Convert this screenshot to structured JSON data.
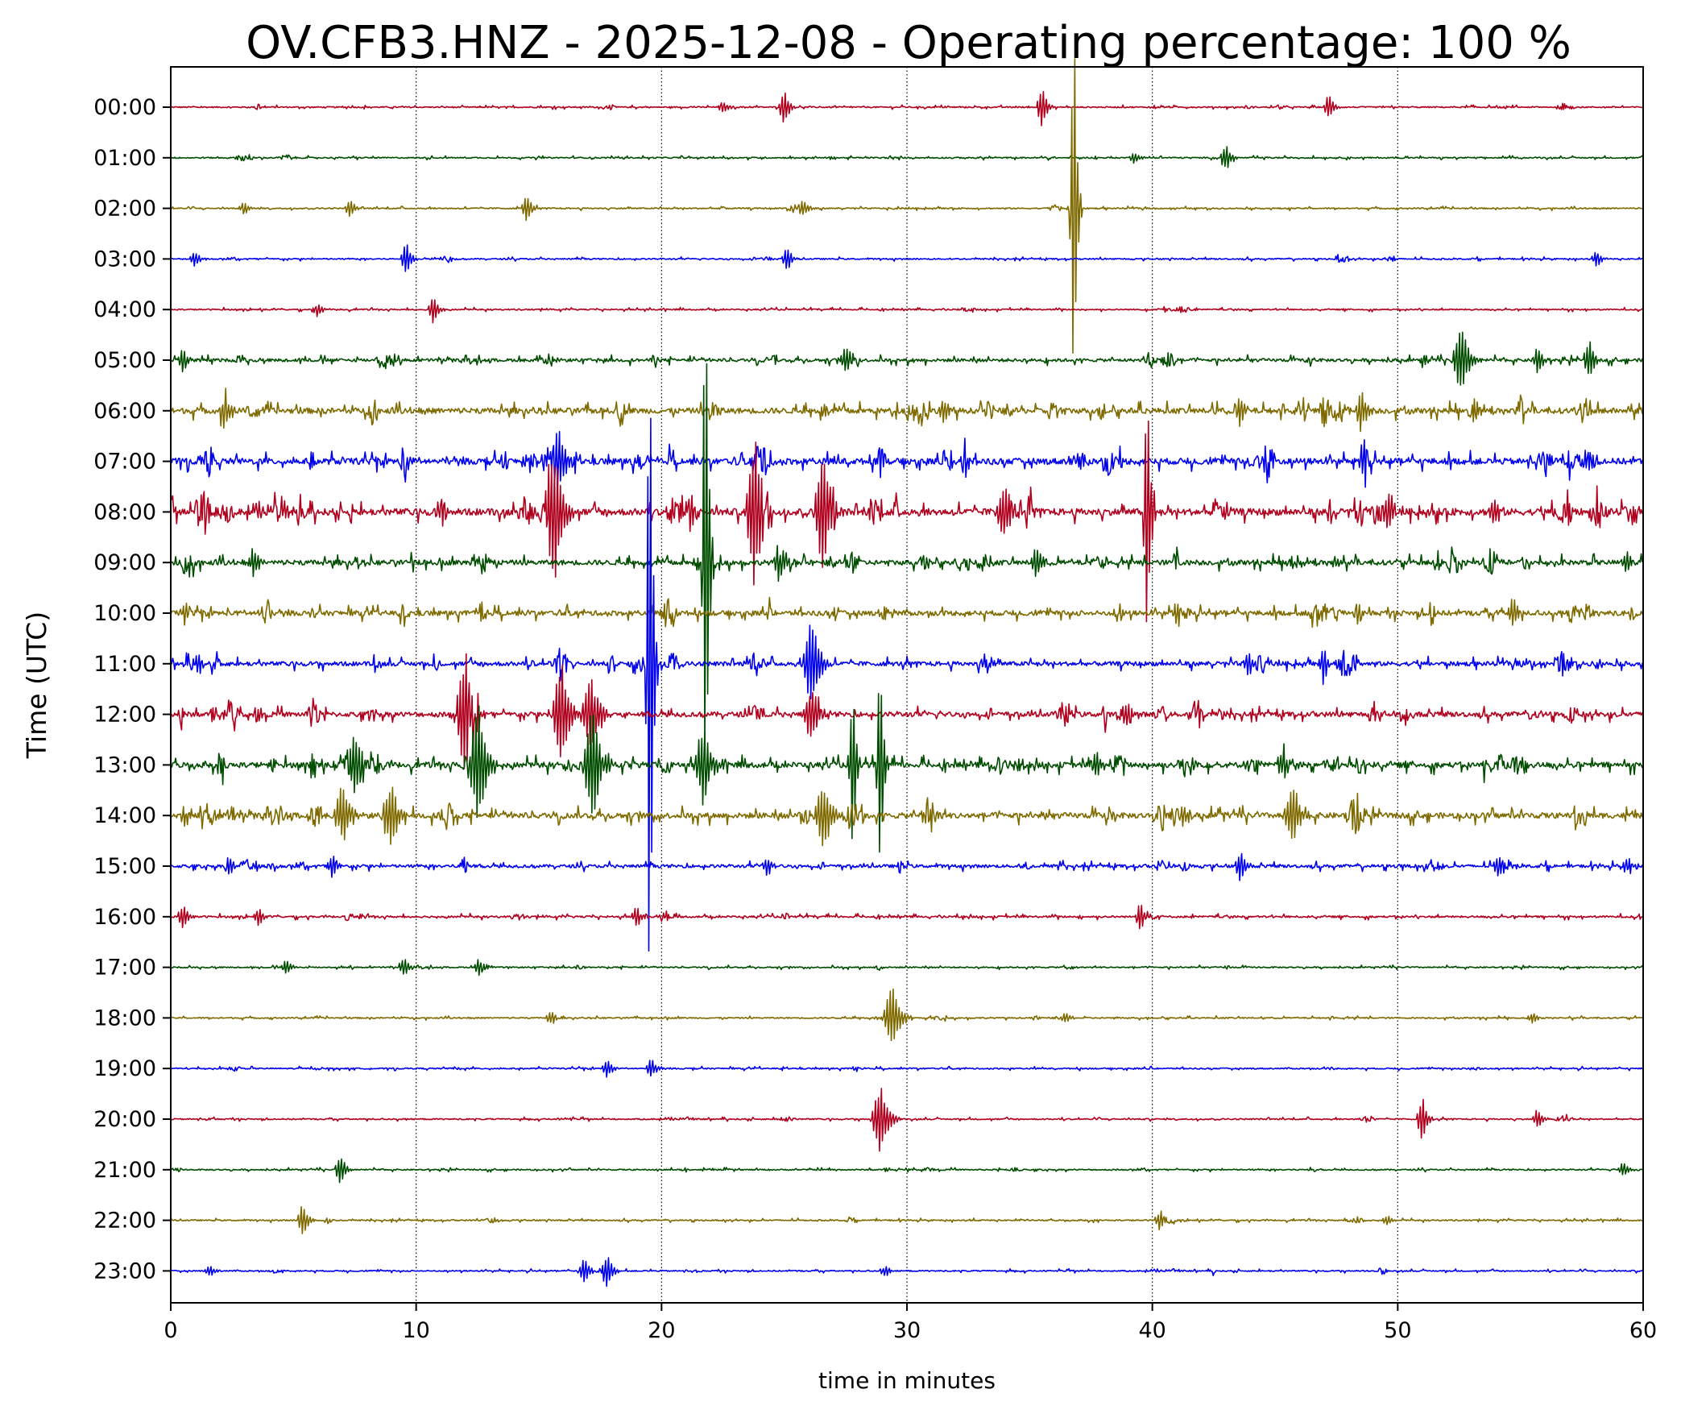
{
  "chart_data": {
    "type": "line",
    "title": "OV.CFB3.HNZ - 2025-12-08 - Operating percentage: 100 %",
    "xlabel": "time in minutes",
    "ylabel": "Time (UTC)",
    "xlim": [
      0,
      60
    ],
    "xticks": [
      0,
      10,
      20,
      30,
      40,
      50,
      60
    ],
    "grid": "vertical dotted lines at 10, 20, 30, 40, 50",
    "row_labels": [
      "00:00",
      "01:00",
      "02:00",
      "03:00",
      "04:00",
      "05:00",
      "06:00",
      "07:00",
      "08:00",
      "09:00",
      "10:00",
      "11:00",
      "12:00",
      "13:00",
      "14:00",
      "15:00",
      "16:00",
      "17:00",
      "18:00",
      "19:00",
      "20:00",
      "21:00",
      "22:00",
      "23:00"
    ],
    "color_cycle": [
      "#b0001e",
      "#004d00",
      "#7f6a00",
      "#0000ee"
    ],
    "events": [
      {
        "row": 0,
        "t": 35.5,
        "amp": 0.5
      },
      {
        "row": 0,
        "t": 25.0,
        "amp": 0.4
      },
      {
        "row": 0,
        "t": 47.2,
        "amp": 0.3
      },
      {
        "row": 0,
        "t": 22.5,
        "amp": 0.15
      },
      {
        "row": 1,
        "t": 43.0,
        "amp": 0.35
      },
      {
        "row": 1,
        "t": 39.3,
        "amp": 0.15
      },
      {
        "row": 2,
        "t": 36.8,
        "amp": 5.0
      },
      {
        "row": 2,
        "t": 14.5,
        "amp": 0.35
      },
      {
        "row": 2,
        "t": 7.3,
        "amp": 0.25
      },
      {
        "row": 2,
        "t": 25.8,
        "amp": 0.2
      },
      {
        "row": 2,
        "t": 3.0,
        "amp": 0.15
      },
      {
        "row": 3,
        "t": 9.6,
        "amp": 0.4
      },
      {
        "row": 3,
        "t": 25.1,
        "amp": 0.3
      },
      {
        "row": 3,
        "t": 1.0,
        "amp": 0.2
      },
      {
        "row": 3,
        "t": 58.1,
        "amp": 0.2
      },
      {
        "row": 4,
        "t": 10.7,
        "amp": 0.35
      },
      {
        "row": 4,
        "t": 6.0,
        "amp": 0.15
      },
      {
        "row": 5,
        "t": 57.8,
        "amp": 0.5
      },
      {
        "row": 5,
        "t": 52.6,
        "amp": 0.8
      },
      {
        "row": 5,
        "t": 55.7,
        "amp": 0.35
      },
      {
        "row": 5,
        "t": 27.5,
        "amp": 0.35
      },
      {
        "row": 5,
        "t": 0.5,
        "amp": 0.3
      },
      {
        "row": 6,
        "t": 48.5,
        "amp": 0.6
      },
      {
        "row": 6,
        "t": 2.2,
        "amp": 0.6
      },
      {
        "row": 6,
        "t": 31.5,
        "amp": 0.35
      },
      {
        "row": 6,
        "t": 43.6,
        "amp": 0.45
      },
      {
        "row": 7,
        "t": 15.8,
        "amp": 0.8
      },
      {
        "row": 7,
        "t": 48.6,
        "amp": 0.4
      },
      {
        "row": 7,
        "t": 57.6,
        "amp": 0.25
      },
      {
        "row": 7,
        "t": 9.6,
        "amp": 0.25
      },
      {
        "row": 8,
        "t": 39.8,
        "amp": 3.8
      },
      {
        "row": 8,
        "t": 23.8,
        "amp": 1.9
      },
      {
        "row": 8,
        "t": 15.6,
        "amp": 1.8
      },
      {
        "row": 8,
        "t": 26.6,
        "amp": 1.5
      },
      {
        "row": 8,
        "t": 34.0,
        "amp": 0.7
      },
      {
        "row": 8,
        "t": 4.6,
        "amp": 0.3
      },
      {
        "row": 8,
        "t": 21.2,
        "amp": 0.5
      },
      {
        "row": 8,
        "t": 49.6,
        "amp": 0.5
      },
      {
        "row": 8,
        "t": 53.9,
        "amp": 0.4
      },
      {
        "row": 9,
        "t": 21.8,
        "amp": 7.5
      },
      {
        "row": 9,
        "t": 24.8,
        "amp": 0.6
      },
      {
        "row": 9,
        "t": 35.3,
        "amp": 0.5
      },
      {
        "row": 9,
        "t": 3.4,
        "amp": 0.4
      },
      {
        "row": 9,
        "t": 59.3,
        "amp": 0.3
      },
      {
        "row": 9,
        "t": 47.5,
        "amp": 0.15
      },
      {
        "row": 10,
        "t": 54.7,
        "amp": 0.4
      },
      {
        "row": 10,
        "t": 48.4,
        "amp": 0.3
      },
      {
        "row": 10,
        "t": 0.6,
        "amp": 0.3
      },
      {
        "row": 10,
        "t": 41.0,
        "amp": 0.3
      },
      {
        "row": 11,
        "t": 19.5,
        "amp": 8.9
      },
      {
        "row": 11,
        "t": 26.1,
        "amp": 1.1
      },
      {
        "row": 11,
        "t": 43.9,
        "amp": 0.35
      },
      {
        "row": 11,
        "t": 1.1,
        "amp": 0.3
      },
      {
        "row": 11,
        "t": 47.0,
        "amp": 0.45
      },
      {
        "row": 12,
        "t": 12.0,
        "amp": 1.6
      },
      {
        "row": 12,
        "t": 15.9,
        "amp": 1.3
      },
      {
        "row": 12,
        "t": 17.1,
        "amp": 1.0
      },
      {
        "row": 12,
        "t": 26.1,
        "amp": 0.7
      },
      {
        "row": 12,
        "t": 3.5,
        "amp": 0.25
      },
      {
        "row": 12,
        "t": 39.0,
        "amp": 0.3
      },
      {
        "row": 13,
        "t": 12.5,
        "amp": 1.6
      },
      {
        "row": 13,
        "t": 17.2,
        "amp": 1.6
      },
      {
        "row": 13,
        "t": 27.8,
        "amp": 2.4
      },
      {
        "row": 13,
        "t": 28.9,
        "amp": 3.0
      },
      {
        "row": 13,
        "t": 7.5,
        "amp": 0.8
      },
      {
        "row": 13,
        "t": 37.7,
        "amp": 0.4
      },
      {
        "row": 13,
        "t": 45.3,
        "amp": 0.45
      },
      {
        "row": 13,
        "t": 21.7,
        "amp": 1.0
      },
      {
        "row": 14,
        "t": 7.0,
        "amp": 0.8
      },
      {
        "row": 14,
        "t": 9.0,
        "amp": 0.8
      },
      {
        "row": 14,
        "t": 45.7,
        "amp": 0.7
      },
      {
        "row": 14,
        "t": 26.6,
        "amp": 0.85
      },
      {
        "row": 14,
        "t": 41.3,
        "amp": 0.35
      },
      {
        "row": 14,
        "t": 0.6,
        "amp": 0.3
      },
      {
        "row": 15,
        "t": 24.3,
        "amp": 0.25
      },
      {
        "row": 15,
        "t": 43.6,
        "amp": 0.45
      },
      {
        "row": 15,
        "t": 6.6,
        "amp": 0.3
      },
      {
        "row": 15,
        "t": 2.4,
        "amp": 0.25
      },
      {
        "row": 15,
        "t": 59.4,
        "amp": 0.25
      },
      {
        "row": 15,
        "t": 54.1,
        "amp": 0.3
      },
      {
        "row": 16,
        "t": 0.5,
        "amp": 0.35
      },
      {
        "row": 16,
        "t": 19.0,
        "amp": 0.3
      },
      {
        "row": 16,
        "t": 39.5,
        "amp": 0.3
      },
      {
        "row": 16,
        "t": 3.6,
        "amp": 0.2
      },
      {
        "row": 17,
        "t": 9.5,
        "amp": 0.25
      },
      {
        "row": 17,
        "t": 12.6,
        "amp": 0.25
      },
      {
        "row": 17,
        "t": 4.7,
        "amp": 0.2
      },
      {
        "row": 18,
        "t": 29.4,
        "amp": 0.8
      },
      {
        "row": 18,
        "t": 15.5,
        "amp": 0.2
      },
      {
        "row": 18,
        "t": 55.5,
        "amp": 0.15
      },
      {
        "row": 18,
        "t": 36.5,
        "amp": 0.15
      },
      {
        "row": 19,
        "t": 17.8,
        "amp": 0.25
      },
      {
        "row": 19,
        "t": 19.6,
        "amp": 0.25
      },
      {
        "row": 20,
        "t": 28.9,
        "amp": 0.8
      },
      {
        "row": 20,
        "t": 51.0,
        "amp": 0.55
      },
      {
        "row": 20,
        "t": 55.7,
        "amp": 0.25
      },
      {
        "row": 21,
        "t": 6.9,
        "amp": 0.4
      },
      {
        "row": 21,
        "t": 59.2,
        "amp": 0.2
      },
      {
        "row": 22,
        "t": 5.4,
        "amp": 0.45
      },
      {
        "row": 22,
        "t": 40.3,
        "amp": 0.25
      },
      {
        "row": 22,
        "t": 49.6,
        "amp": 0.15
      },
      {
        "row": 23,
        "t": 17.8,
        "amp": 0.45
      },
      {
        "row": 23,
        "t": 16.9,
        "amp": 0.35
      },
      {
        "row": 23,
        "t": 1.6,
        "amp": 0.15
      },
      {
        "row": 23,
        "t": 29.1,
        "amp": 0.15
      }
    ],
    "row_noise": [
      0.02,
      0.02,
      0.02,
      0.02,
      0.02,
      0.05,
      0.09,
      0.1,
      0.11,
      0.08,
      0.08,
      0.07,
      0.08,
      0.09,
      0.09,
      0.05,
      0.03,
      0.02,
      0.02,
      0.02,
      0.02,
      0.02,
      0.02,
      0.02
    ]
  }
}
